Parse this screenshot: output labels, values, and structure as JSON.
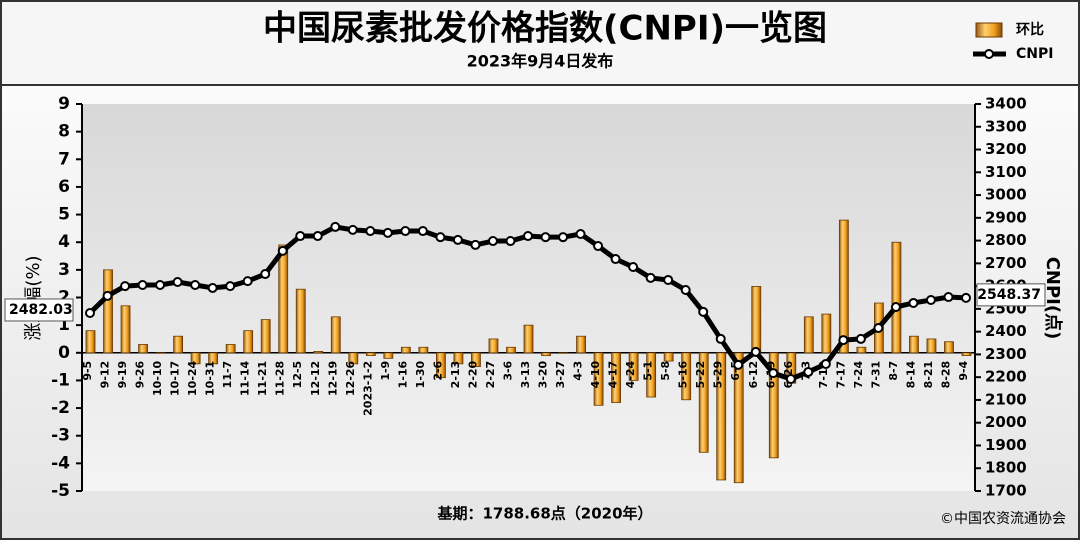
{
  "chart_data": {
    "type": "bar-line",
    "title": "中国尿素批发价格指数(CNPI)一览图",
    "subtitle": "2023年9月4日发布",
    "y_label": "涨跌幅(%)",
    "y2_label": "CNPI(点)",
    "footnote": "基期：1788.68点（2020年）",
    "source": "©中国农资流通协会",
    "categories": [
      "9-5",
      "9-12",
      "9-19",
      "9-26",
      "10-10",
      "10-17",
      "10-24",
      "10-31",
      "11-7",
      "11-14",
      "11-21",
      "11-28",
      "12-5",
      "12-12",
      "12-19",
      "12-26",
      "2023-1-2",
      "1-9",
      "1-16",
      "1-30",
      "2-6",
      "2-13",
      "2-20",
      "2-27",
      "3-6",
      "3-13",
      "3-20",
      "3-27",
      "4-3",
      "4-10",
      "4-17",
      "4-24",
      "5-1",
      "5-8",
      "5-16",
      "5-22",
      "5-29",
      "6-5",
      "6-12",
      "6-19",
      "6-26",
      "7-3",
      "7-10",
      "7-17",
      "7-24",
      "7-31",
      "8-7",
      "8-14",
      "8-21",
      "8-28",
      "9-4"
    ],
    "series": [
      {
        "name": "环比",
        "type": "bar",
        "color": "#f0a020",
        "values": [
          0.8,
          3.0,
          1.7,
          0.3,
          0,
          0.6,
          -0.4,
          -0.4,
          0.3,
          0.8,
          1.2,
          3.9,
          2.3,
          0.05,
          1.3,
          -0.4,
          -0.1,
          -0.2,
          0.2,
          0.2,
          -0.9,
          -0.4,
          -0.5,
          0.5,
          0.2,
          1.0,
          -0.1,
          0,
          0.6,
          -1.9,
          -1.8,
          -1.0,
          -1.6,
          -0.3,
          -1.7,
          -3.6,
          -4.6,
          -4.7,
          2.4,
          -3.8,
          -1.1,
          1.3,
          1.4,
          4.8,
          0.2,
          1.8,
          4.0,
          0.6,
          0.5,
          0.4,
          -0.1
        ]
      },
      {
        "name": "CNPI",
        "type": "line",
        "axis": "y2",
        "color": "#000000",
        "values": [
          2482.03,
          2557,
          2600,
          2605,
          2605,
          2618,
          2605,
          2592,
          2600,
          2622,
          2653,
          2755,
          2820,
          2820,
          2860,
          2847,
          2842,
          2834,
          2842,
          2842,
          2815,
          2803,
          2781,
          2798,
          2798,
          2820,
          2815,
          2815,
          2829,
          2776,
          2719,
          2684,
          2636,
          2627,
          2583,
          2487,
          2368,
          2254,
          2311,
          2218,
          2192,
          2223,
          2258,
          2363,
          2368,
          2416,
          2508,
          2526,
          2539,
          2552,
          2548.37
        ]
      }
    ],
    "ylim": [
      -5,
      9
    ],
    "yticks": [
      -5,
      -4,
      -3,
      -2,
      -1,
      0,
      1,
      2,
      3,
      4,
      5,
      6,
      7,
      8,
      9
    ],
    "y2lim": [
      1700,
      3400
    ],
    "y2ticks": [
      1700,
      1800,
      1900,
      2000,
      2100,
      2200,
      2300,
      2400,
      2500,
      2600,
      2700,
      2800,
      2900,
      3000,
      3100,
      3200,
      3300,
      3400
    ],
    "legend": "top-right"
  }
}
